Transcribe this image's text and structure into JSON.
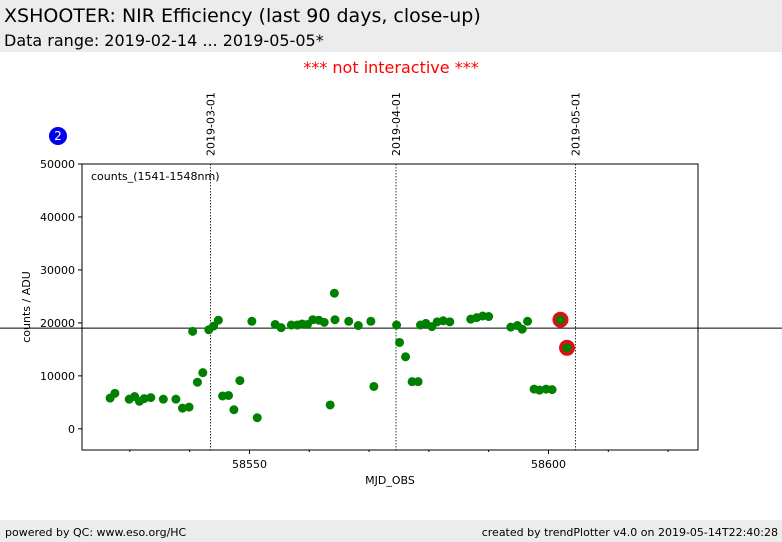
{
  "header": {
    "title": "XSHOOTER: NIR Efficiency (last 90 days, close-up)",
    "subtitle": "Data range: 2019-02-14 ... 2019-05-05*"
  },
  "notice": "*** not interactive ***",
  "footer": {
    "left": "powered by QC: www.eso.org/HC",
    "right": "created by trendPlotter v4.0 on 2019-05-14T22:40:28"
  },
  "colors": {
    "points": "#008000",
    "highlight": "#dd1111",
    "badge": "#0000ee",
    "header_bg": "#ececec",
    "notice": "#ff0000"
  },
  "chart_data": {
    "type": "scatter",
    "title": "XSHOOTER: NIR Efficiency (last 90 days, close-up)",
    "xlabel": "MJD_OBS",
    "ylabel": "counts / ADU",
    "annotation": "counts_(1541-1548nm)",
    "badge": "2",
    "xlim": [
      58522,
      58625
    ],
    "ylim": [
      -4000,
      50000
    ],
    "xticks": [
      58550,
      58600
    ],
    "yticks": [
      0,
      10000,
      20000,
      30000,
      40000,
      50000
    ],
    "ytick_labels": [
      "0",
      "10000",
      "20000",
      "30000",
      "40000",
      "50000"
    ],
    "reference_line": 19000,
    "grid": false,
    "date_markers": [
      {
        "mjd": 58543.5,
        "label": "2019-03-01"
      },
      {
        "mjd": 58574.5,
        "label": "2019-04-01"
      },
      {
        "mjd": 58604.5,
        "label": "2019-05-01"
      }
    ],
    "series": [
      {
        "points": [
          [
            58526.7,
            5800
          ],
          [
            58527.5,
            6700
          ],
          [
            58529.9,
            5600
          ],
          [
            58530.8,
            6100
          ],
          [
            58531.6,
            5200
          ],
          [
            58532.4,
            5700
          ],
          [
            58533.5,
            5900
          ],
          [
            58535.6,
            5600
          ],
          [
            58537.7,
            5600
          ],
          [
            58538.8,
            3900
          ],
          [
            58539.9,
            4100
          ],
          [
            58540.5,
            18400
          ],
          [
            58541.3,
            8800
          ],
          [
            58542.2,
            10600
          ],
          [
            58543.2,
            18700
          ],
          [
            58544.0,
            19400
          ],
          [
            58544.8,
            20500
          ],
          [
            58545.5,
            6200
          ],
          [
            58546.5,
            6300
          ],
          [
            58547.4,
            3600
          ],
          [
            58548.4,
            9100
          ],
          [
            58550.4,
            20300
          ],
          [
            58551.3,
            2100
          ],
          [
            58554.3,
            19700
          ],
          [
            58555.3,
            19100
          ],
          [
            58557.0,
            19600
          ],
          [
            58558.0,
            19600
          ],
          [
            58558.8,
            19800
          ],
          [
            58559.7,
            19700
          ],
          [
            58560.6,
            20600
          ],
          [
            58561.6,
            20500
          ],
          [
            58562.5,
            20100
          ],
          [
            58563.5,
            4500
          ],
          [
            58564.2,
            25600
          ],
          [
            58564.3,
            20600
          ],
          [
            58566.6,
            20300
          ],
          [
            58568.2,
            19500
          ],
          [
            58570.3,
            20300
          ],
          [
            58570.8,
            8000
          ],
          [
            58574.6,
            19600
          ],
          [
            58575.1,
            16300
          ],
          [
            58576.1,
            13600
          ],
          [
            58577.2,
            8900
          ],
          [
            58578.2,
            8900
          ],
          [
            58578.6,
            19600
          ],
          [
            58579.5,
            19900
          ],
          [
            58580.5,
            19300
          ],
          [
            58581.4,
            20200
          ],
          [
            58582.4,
            20400
          ],
          [
            58583.5,
            20200
          ],
          [
            58587.0,
            20700
          ],
          [
            58588.0,
            21000
          ],
          [
            58589.0,
            21300
          ],
          [
            58590.0,
            21200
          ],
          [
            58593.7,
            19200
          ],
          [
            58594.8,
            19500
          ],
          [
            58595.6,
            18800
          ],
          [
            58596.5,
            20300
          ],
          [
            58597.6,
            7500
          ],
          [
            58598.5,
            7300
          ],
          [
            58599.6,
            7500
          ],
          [
            58600.6,
            7400
          ]
        ]
      }
    ],
    "highlighted": [
      [
        58602.0,
        20600
      ],
      [
        58603.1,
        15300
      ]
    ]
  }
}
